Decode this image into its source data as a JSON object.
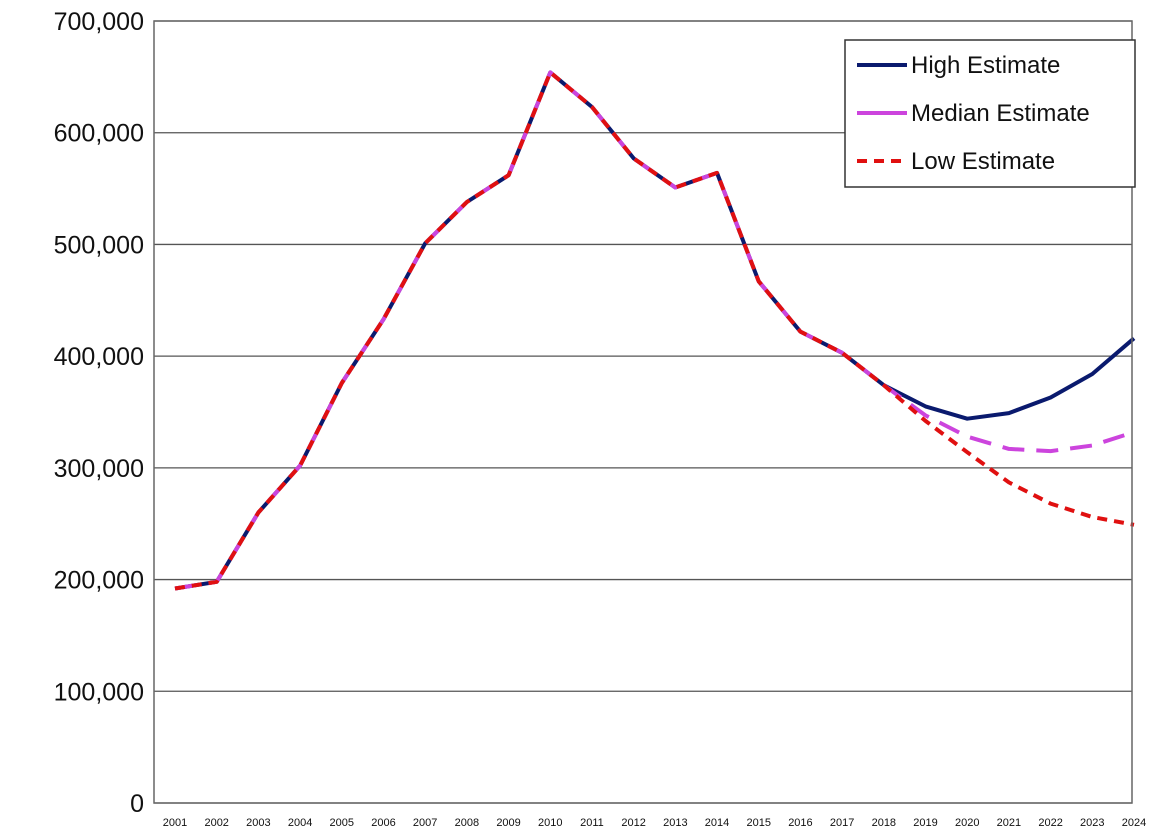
{
  "chart_data": {
    "type": "line",
    "title": "",
    "xlabel": "",
    "ylabel": "",
    "ylim": [
      0,
      700000
    ],
    "yticks": [
      0,
      100000,
      200000,
      300000,
      400000,
      500000,
      600000,
      700000
    ],
    "ytick_labels": [
      "0",
      "100,000",
      "200,000",
      "300,000",
      "400,000",
      "500,000",
      "600,000",
      "700,000"
    ],
    "x": [
      "2001",
      "2002",
      "2003",
      "2004",
      "2005",
      "2006",
      "2007",
      "2008",
      "2009",
      "2010",
      "2011",
      "2012",
      "2013",
      "2014",
      "2015",
      "2016",
      "2017",
      "2018",
      "2019",
      "2020",
      "2021",
      "2022",
      "2023",
      "2024"
    ],
    "grid": "horizontal",
    "legend_position": "top-right",
    "series": [
      {
        "name": "High Estimate",
        "color": "#0a1a6e",
        "style": "solid",
        "values": [
          192000,
          198000,
          260000,
          302000,
          376000,
          433000,
          501000,
          538000,
          562000,
          654000,
          623000,
          577000,
          551000,
          564000,
          467000,
          422000,
          403000,
          374000,
          355000,
          344000,
          349000,
          363000,
          384000,
          416000
        ]
      },
      {
        "name": "Median Estimate",
        "color": "#cc44dd",
        "style": "long-dash",
        "values": [
          192000,
          198000,
          260000,
          302000,
          376000,
          433000,
          501000,
          538000,
          562000,
          654000,
          623000,
          577000,
          551000,
          564000,
          467000,
          422000,
          403000,
          374000,
          347000,
          328000,
          317000,
          315000,
          320000,
          332000
        ]
      },
      {
        "name": "Low Estimate",
        "color": "#e01010",
        "style": "dashed",
        "values": [
          192000,
          198000,
          260000,
          302000,
          376000,
          433000,
          501000,
          538000,
          562000,
          654000,
          623000,
          577000,
          551000,
          564000,
          467000,
          422000,
          403000,
          374000,
          342000,
          314000,
          287000,
          268000,
          256000,
          249000
        ]
      }
    ]
  }
}
